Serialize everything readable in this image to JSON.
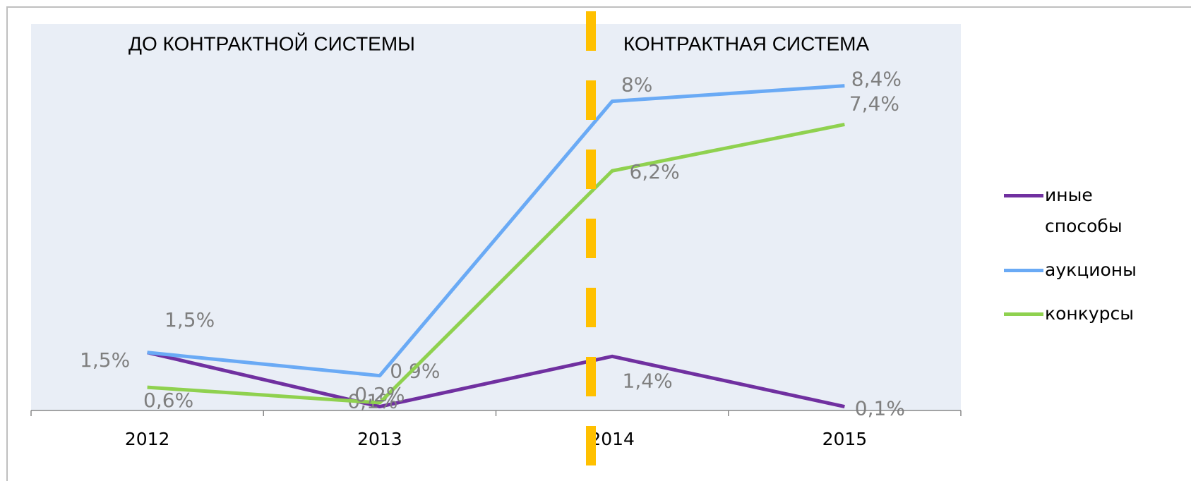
{
  "chart_data": {
    "type": "line",
    "annotations": [
      "ДО КОНТРАКТНОЙ СИСТЕМЫ",
      "КОНТРАКТНАЯ СИСТЕМА"
    ],
    "categories": [
      "2012",
      "2013",
      "2014",
      "2015"
    ],
    "ylim": [
      0,
      10
    ],
    "legend": "right",
    "series": [
      {
        "name": "иные способы",
        "color": "#7030a0",
        "values": [
          1.5,
          0.1,
          1.4,
          0.1
        ],
        "value_labels": [
          "1,5%",
          "0,1%",
          "1,4%",
          "0,1%"
        ]
      },
      {
        "name": "аукционы",
        "color": "#6aaaf5",
        "values": [
          1.5,
          0.9,
          8,
          8.4
        ],
        "value_labels": [
          "1,5%",
          "0,9%",
          "8%",
          "8,4%"
        ]
      },
      {
        "name": "конкурсы",
        "color": "#8fd14f",
        "values": [
          0.6,
          0.2,
          6.2,
          7.4
        ],
        "value_labels": [
          "0,6%",
          "0,2%",
          "6,2%",
          "7,4%"
        ]
      }
    ]
  }
}
